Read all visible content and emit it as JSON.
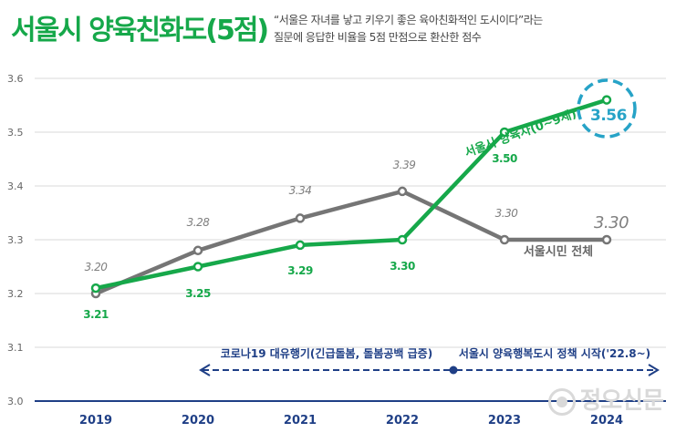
{
  "header": {
    "title": "서울시 양육친화도(5점)",
    "subtitle_line1": "“서울은 자녀를 낳고 키우기 좋은 육아친화적인 도시이다”라는",
    "subtitle_line2": "질문에 응답한 비율을 5점 만점으로 환산한 점수"
  },
  "watermark": "정오신문",
  "colors": {
    "parents": "#16a84a",
    "all": "#757575",
    "axis": "#1f3f86",
    "highlight": "#27a3c7",
    "grid": "#d8d8d8"
  },
  "chart_data": {
    "type": "line",
    "title": "서울시 양육친화도(5점)",
    "categories": [
      "2019",
      "2020",
      "2021",
      "2022",
      "2023",
      "2024"
    ],
    "y_ticks": [
      "3.0",
      "3.1",
      "3.2",
      "3.3",
      "3.4",
      "3.5",
      "3.6"
    ],
    "ylim": [
      3.0,
      3.6
    ],
    "grid": true,
    "series": [
      {
        "name": "서울시민 전체",
        "values": [
          3.2,
          3.28,
          3.34,
          3.39,
          3.3,
          3.3
        ],
        "labels": [
          "3.20",
          "3.28",
          "3.34",
          "3.39",
          "3.30",
          "3.30"
        ]
      },
      {
        "name": "서울시 양육자(0~9세)",
        "values": [
          3.21,
          3.25,
          3.29,
          3.3,
          3.5,
          3.56
        ],
        "labels": [
          "3.21",
          "3.25",
          "3.29",
          "3.30",
          "3.50",
          "3.56"
        ]
      }
    ],
    "annotations": {
      "covid": "코로나19 대유행기(긴급돌봄, 돌봄공백 급증)",
      "policy": "서울시 양육행복도시 정책 시작('22.8~)"
    }
  }
}
